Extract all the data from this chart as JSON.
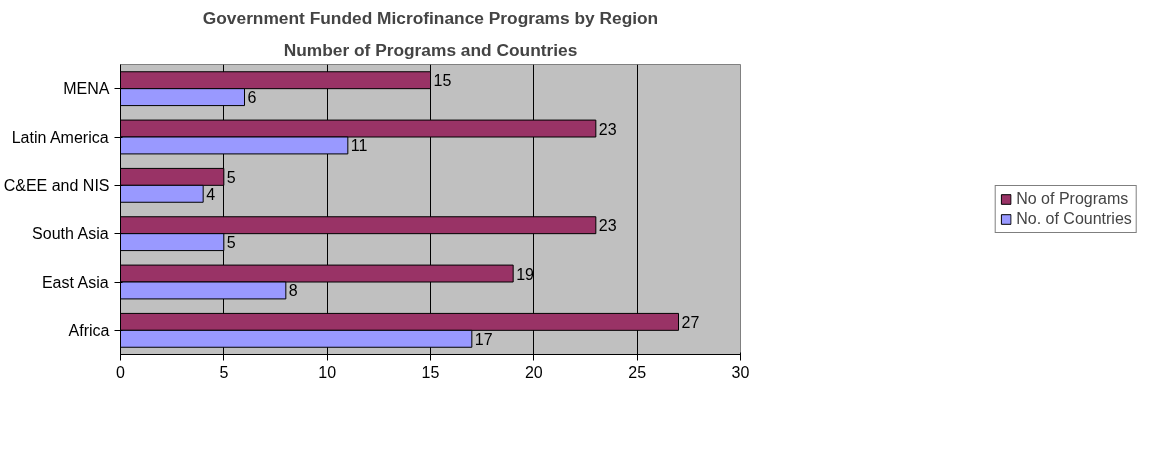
{
  "chart_data": {
    "type": "bar",
    "orientation": "horizontal",
    "title": "Government Funded Microfinance Programs by Region",
    "subtitle": "Number of Programs and Countries",
    "categories": [
      "MENA",
      "Latin America",
      "C&EE and NIS",
      "South Asia",
      "East Asia",
      "Africa"
    ],
    "series": [
      {
        "name": "No of Programs",
        "color": "#993366",
        "values": [
          15,
          23,
          5,
          23,
          19,
          27
        ]
      },
      {
        "name": "No. of Countries",
        "color": "#9999ff",
        "values": [
          6,
          11,
          4,
          5,
          8,
          17
        ]
      }
    ],
    "xlim": [
      0,
      30
    ],
    "xticks": [
      0,
      5,
      10,
      15,
      20,
      25,
      30
    ],
    "grid": "x",
    "legend": "right",
    "data_labels": true
  }
}
